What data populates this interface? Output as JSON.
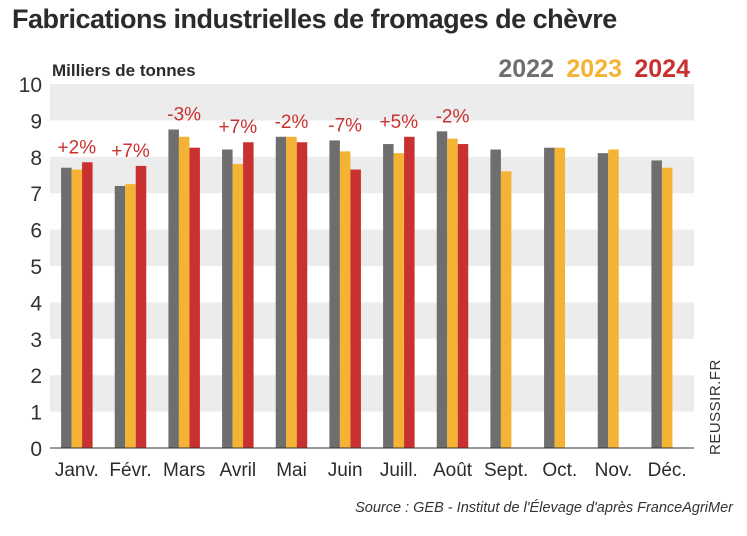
{
  "chart_data": {
    "type": "bar",
    "title": "Fabrications industrielles de fromages de chèvre",
    "ylabel": "Milliers de tonnes",
    "xlabel": "",
    "ylim": [
      0,
      10
    ],
    "yticks": [
      "0",
      "1",
      "2",
      "3",
      "4",
      "5",
      "6",
      "7",
      "8",
      "9",
      "10"
    ],
    "categories": [
      "Janv.",
      "Févr.",
      "Mars",
      "Avril",
      "Mai",
      "Juin",
      "Juill.",
      "Août",
      "Sept.",
      "Oct.",
      "Nov.",
      "Déc."
    ],
    "series": [
      {
        "name": "2022",
        "color": "#6e6e6e",
        "values": [
          7.7,
          7.2,
          8.75,
          8.2,
          8.55,
          8.45,
          8.35,
          8.7,
          8.2,
          8.25,
          8.1,
          7.9
        ]
      },
      {
        "name": "2023",
        "color": "#f5b335",
        "values": [
          7.65,
          7.25,
          8.55,
          7.8,
          8.55,
          8.15,
          8.1,
          8.5,
          7.6,
          8.25,
          8.2,
          7.7
        ]
      },
      {
        "name": "2024",
        "color": "#c8312f",
        "values": [
          7.85,
          7.75,
          8.25,
          8.4,
          8.4,
          7.65,
          8.55,
          8.35,
          null,
          null,
          null,
          null
        ]
      }
    ],
    "annotations": [
      "+2%",
      "+7%",
      "-3%",
      "+7%",
      "-2%",
      "-7%",
      "+5%",
      "-2%",
      "",
      "",
      "",
      ""
    ],
    "annotation_color": "#c8312f",
    "grid": "alternating horizontal bands",
    "band_color": "#ececec",
    "legend_position": "top-right"
  },
  "source": "Source : GEB - Institut de l'Élevage d'après FranceAgriMer",
  "watermark": "REUSSIR.FR"
}
